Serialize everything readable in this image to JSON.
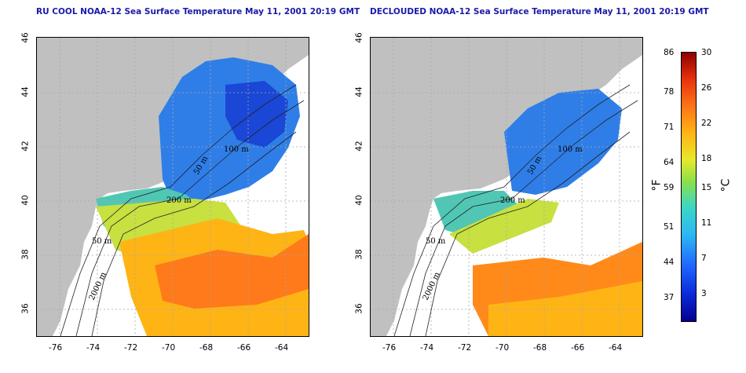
{
  "left_panel": {
    "title": "RU COOL NOAA-12 Sea Surface Temperature May 11, 2001 20:19 GMT"
  },
  "right_panel": {
    "title": "DECLOUDED NOAA-12 Sea Surface Temperature May 11, 2001 20:19 GMT"
  },
  "axes": {
    "longitude_ticks": [
      "-76",
      "-74",
      "-72",
      "-70",
      "-68",
      "-66",
      "-64"
    ],
    "latitude_ticks": [
      "46",
      "44",
      "42",
      "40",
      "38",
      "36"
    ]
  },
  "isobaths": [
    "50 m",
    "200 m",
    "2000 m",
    "100 m",
    "50 m"
  ],
  "colorbar": {
    "fahrenheit_label": "°F",
    "celsius_label": "°C",
    "fahrenheit_ticks": [
      "86",
      "78",
      "71",
      "64",
      "59",
      "51",
      "44",
      "37"
    ],
    "celsius_ticks": [
      "30",
      "26",
      "22",
      "18",
      "15",
      "11",
      "7",
      "3"
    ]
  },
  "colors": {
    "land": "#c0c0c0",
    "title": "#1a1aa8",
    "grid": "#a8a8a8"
  }
}
